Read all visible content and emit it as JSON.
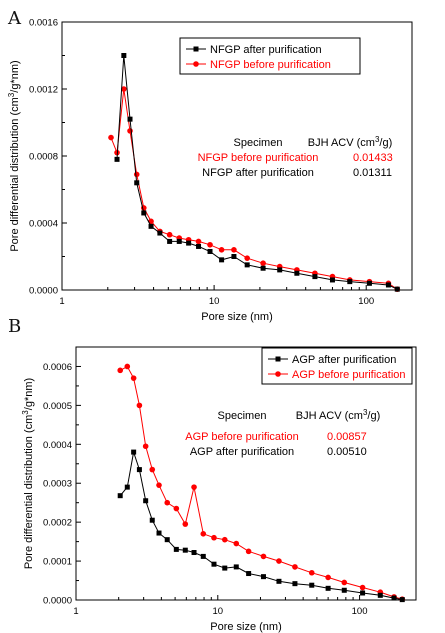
{
  "colors": {
    "after": "#000000",
    "before": "#ff0000"
  },
  "chart_data": [
    {
      "panel": "A",
      "type": "line",
      "xscale": "log",
      "xlim": [
        1,
        200
      ],
      "ylim": [
        0,
        0.0016
      ],
      "xlabel": "Pore size (nm)",
      "ylabel_main": "Pore differential distribution (cm",
      "ylabel_sup": "3",
      "ylabel_tail": "/g*nm)",
      "xticks": [
        {
          "v": 1,
          "t": "1"
        },
        {
          "v": 10,
          "t": "10"
        },
        {
          "v": 100,
          "t": "100"
        }
      ],
      "yticks": [
        {
          "v": 0,
          "t": "0.0000"
        },
        {
          "v": 0.0004,
          "t": "0.0004"
        },
        {
          "v": 0.0008,
          "t": "0.0008"
        },
        {
          "v": 0.0012,
          "t": "0.0012"
        },
        {
          "v": 0.0016,
          "t": "0.0016"
        }
      ],
      "series": [
        {
          "name": "NFGP after purification",
          "color": "#000000",
          "marker": "square",
          "x": [
            2.3,
            2.55,
            2.8,
            3.1,
            3.45,
            3.85,
            4.4,
            5.1,
            5.9,
            6.8,
            7.9,
            9.4,
            11.2,
            13.5,
            16.5,
            21,
            27,
            35,
            46,
            60,
            78,
            105,
            140,
            160
          ],
          "y": [
            0.00078,
            0.0014,
            0.00102,
            0.00064,
            0.00046,
            0.00038,
            0.00034,
            0.00029,
            0.00029,
            0.00028,
            0.00026,
            0.00023,
            0.00018,
            0.0002,
            0.00015,
            0.00013,
            0.00012,
            0.0001,
            8e-05,
            6e-05,
            5e-05,
            4e-05,
            3e-05,
            5e-06
          ]
        },
        {
          "name": "NFGP before purification",
          "color": "#ff0000",
          "marker": "circle",
          "x": [
            2.1,
            2.3,
            2.55,
            2.8,
            3.1,
            3.45,
            3.85,
            4.4,
            5.1,
            5.9,
            6.8,
            7.9,
            9.4,
            11.2,
            13.5,
            16.5,
            21,
            27,
            35,
            46,
            60,
            78,
            105,
            140,
            160
          ],
          "y": [
            0.00091,
            0.00082,
            0.0012,
            0.00095,
            0.00069,
            0.00049,
            0.00041,
            0.00035,
            0.00033,
            0.00031,
            0.0003,
            0.00029,
            0.00027,
            0.00024,
            0.00024,
            0.00019,
            0.00016,
            0.00014,
            0.00012,
            0.0001,
            8e-05,
            6e-05,
            5e-05,
            4e-05,
            5e-06
          ]
        }
      ],
      "legend": [
        "NFGP after purification",
        "NFGP before purification"
      ],
      "table": {
        "header_left": "Specimen",
        "header_right_main": "BJH ACV (cm",
        "header_right_sup": "3",
        "header_right_tail": "/g)",
        "rows": [
          {
            "specimen": "NFGP before purification",
            "value": "0.01433",
            "color": "#ff0000"
          },
          {
            "specimen": "NFGP after purification",
            "value": "0.01311",
            "color": "#000000"
          }
        ]
      }
    },
    {
      "panel": "B",
      "type": "line",
      "xscale": "log",
      "xlim": [
        1,
        250
      ],
      "ylim": [
        0,
        0.00065
      ],
      "xlabel": "Pore size (nm)",
      "ylabel_main": "Pore differential distribution (cm",
      "ylabel_sup": "3",
      "ylabel_tail": "/g*nm)",
      "xticks": [
        {
          "v": 1,
          "t": "1"
        },
        {
          "v": 10,
          "t": "10"
        },
        {
          "v": 100,
          "t": "100"
        }
      ],
      "yticks": [
        {
          "v": 0,
          "t": "0.0000"
        },
        {
          "v": 0.0001,
          "t": "0.0001"
        },
        {
          "v": 0.0002,
          "t": "0.0002"
        },
        {
          "v": 0.0003,
          "t": "0.0003"
        },
        {
          "v": 0.0004,
          "t": "0.0004"
        },
        {
          "v": 0.0005,
          "t": "0.0005"
        },
        {
          "v": 0.0006,
          "t": "0.0006"
        }
      ],
      "series": [
        {
          "name": "AGP after purification",
          "color": "#000000",
          "marker": "square",
          "x": [
            2.05,
            2.3,
            2.55,
            2.8,
            3.1,
            3.45,
            3.85,
            4.4,
            5.1,
            5.9,
            6.8,
            7.9,
            9.4,
            11.2,
            13.5,
            16.5,
            21,
            27,
            35,
            46,
            60,
            78,
            105,
            140,
            175,
            200
          ],
          "y": [
            0.000268,
            0.00029,
            0.00038,
            0.000335,
            0.000255,
            0.000205,
            0.000172,
            0.000155,
            0.00013,
            0.000128,
            0.000122,
            0.000112,
            9.2e-05,
            8.2e-05,
            8.5e-05,
            6.8e-05,
            6e-05,
            4.8e-05,
            4.2e-05,
            3.8e-05,
            3e-05,
            2.5e-05,
            1.8e-05,
            1.2e-05,
            5e-06,
            1e-06
          ]
        },
        {
          "name": "AGP before purification",
          "color": "#ff0000",
          "marker": "circle",
          "x": [
            2.05,
            2.3,
            2.55,
            2.8,
            3.1,
            3.45,
            3.85,
            4.4,
            5.1,
            5.9,
            6.8,
            7.9,
            9.4,
            11.2,
            13.5,
            16.5,
            21,
            27,
            35,
            46,
            60,
            78,
            105,
            140,
            175,
            200
          ],
          "y": [
            0.00059,
            0.0006,
            0.00057,
            0.0005,
            0.000395,
            0.000335,
            0.000295,
            0.00025,
            0.000235,
            0.000195,
            0.00029,
            0.00017,
            0.00016,
            0.000155,
            0.000145,
            0.000125,
            0.000112,
            0.0001,
            8.5e-05,
            7e-05,
            5.8e-05,
            4.5e-05,
            3.2e-05,
            2e-05,
            8e-06,
            2e-06
          ]
        }
      ],
      "legend": [
        "AGP after purification",
        "AGP before purification"
      ],
      "table": {
        "header_left": "Specimen",
        "header_right_main": "BJH ACV (cm",
        "header_right_sup": "3",
        "header_right_tail": "/g)",
        "rows": [
          {
            "specimen": "AGP before purification",
            "value": "0.00857",
            "color": "#ff0000"
          },
          {
            "specimen": "AGP after purification",
            "value": "0.00510",
            "color": "#000000"
          }
        ]
      }
    }
  ]
}
